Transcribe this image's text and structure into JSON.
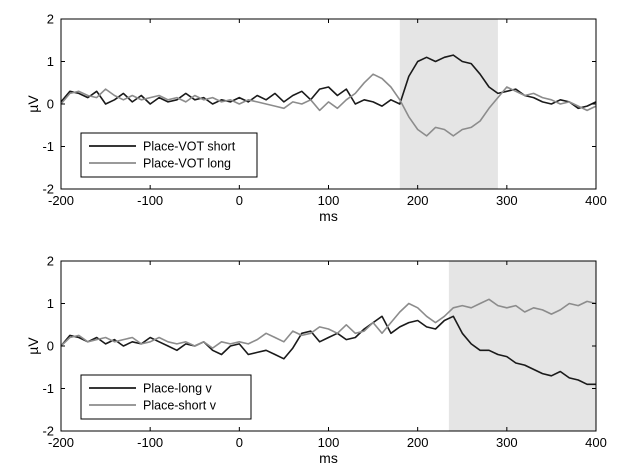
{
  "chart_data": [
    {
      "type": "line",
      "xlabel": "ms",
      "ylabel": "µV",
      "xlim": [
        -200,
        400
      ],
      "ylim": [
        -2,
        2
      ],
      "xticks": [
        "-200",
        "-100",
        "0",
        "100",
        "200",
        "300",
        "400"
      ],
      "yticks": [
        "-2",
        "-1",
        "0",
        "1",
        "2"
      ],
      "legend_position": "bottom-left",
      "shaded_region": [
        180,
        290
      ],
      "colors": {
        "shade": "#e5e5e5",
        "axis": "#000000"
      },
      "series": [
        {
          "name": "Place-VOT short",
          "color": "#1a1a1a",
          "x": [
            -200,
            -190,
            -180,
            -170,
            -160,
            -150,
            -140,
            -130,
            -120,
            -110,
            -100,
            -90,
            -80,
            -70,
            -60,
            -50,
            -40,
            -30,
            -20,
            -10,
            0,
            10,
            20,
            30,
            40,
            50,
            60,
            70,
            80,
            90,
            100,
            110,
            120,
            130,
            140,
            150,
            160,
            170,
            180,
            190,
            200,
            210,
            220,
            230,
            240,
            250,
            260,
            270,
            280,
            290,
            300,
            310,
            320,
            330,
            340,
            350,
            360,
            370,
            380,
            390,
            400
          ],
          "values": [
            0.05,
            0.3,
            0.25,
            0.15,
            0.3,
            0.0,
            0.1,
            0.25,
            0.05,
            0.2,
            0.0,
            0.15,
            0.05,
            0.1,
            0.25,
            0.1,
            0.15,
            0.0,
            0.1,
            0.05,
            0.15,
            0.05,
            0.2,
            0.1,
            0.25,
            0.05,
            0.2,
            0.3,
            0.1,
            0.35,
            0.4,
            0.2,
            0.35,
            0.0,
            0.1,
            0.05,
            -0.05,
            0.1,
            0.0,
            0.65,
            1.0,
            1.1,
            1.0,
            1.1,
            1.15,
            1.0,
            0.95,
            0.7,
            0.4,
            0.25,
            0.3,
            0.35,
            0.2,
            0.15,
            0.05,
            0.0,
            0.1,
            0.05,
            -0.1,
            -0.05,
            0.05
          ]
        },
        {
          "name": "Place-VOT long",
          "color": "#8c8c8c",
          "x": [
            -200,
            -190,
            -180,
            -170,
            -160,
            -150,
            -140,
            -130,
            -120,
            -110,
            -100,
            -90,
            -80,
            -70,
            -60,
            -50,
            -40,
            -30,
            -20,
            -10,
            0,
            10,
            20,
            30,
            40,
            50,
            60,
            70,
            80,
            90,
            100,
            110,
            120,
            130,
            140,
            150,
            160,
            170,
            180,
            190,
            200,
            210,
            220,
            230,
            240,
            250,
            260,
            270,
            280,
            290,
            300,
            310,
            320,
            330,
            340,
            350,
            360,
            370,
            380,
            390,
            400
          ],
          "values": [
            0.0,
            0.25,
            0.3,
            0.2,
            0.15,
            0.35,
            0.2,
            0.1,
            0.2,
            0.1,
            0.15,
            0.2,
            0.1,
            0.15,
            0.05,
            0.2,
            0.1,
            0.15,
            0.05,
            0.1,
            0.0,
            0.1,
            0.05,
            0.0,
            -0.05,
            -0.1,
            0.05,
            0.0,
            0.1,
            -0.15,
            0.05,
            -0.1,
            0.1,
            0.25,
            0.5,
            0.7,
            0.6,
            0.4,
            0.1,
            -0.3,
            -0.6,
            -0.75,
            -0.55,
            -0.6,
            -0.75,
            -0.6,
            -0.55,
            -0.4,
            -0.1,
            0.15,
            0.4,
            0.3,
            0.2,
            0.25,
            0.15,
            0.1,
            0.0,
            0.05,
            -0.05,
            -0.15,
            -0.05
          ]
        }
      ]
    },
    {
      "type": "line",
      "xlabel": "ms",
      "ylabel": "µV",
      "xlim": [
        -200,
        400
      ],
      "ylim": [
        -2,
        2
      ],
      "xticks": [
        "-200",
        "-100",
        "0",
        "100",
        "200",
        "300",
        "400"
      ],
      "yticks": [
        "-2",
        "-1",
        "0",
        "1",
        "2"
      ],
      "legend_position": "bottom-left",
      "shaded_region": [
        235,
        400
      ],
      "colors": {
        "shade": "#e5e5e5",
        "axis": "#000000"
      },
      "series": [
        {
          "name": "Place-long v",
          "color": "#1a1a1a",
          "x": [
            -200,
            -190,
            -180,
            -170,
            -160,
            -150,
            -140,
            -130,
            -120,
            -110,
            -100,
            -90,
            -80,
            -70,
            -60,
            -50,
            -40,
            -30,
            -20,
            -10,
            0,
            10,
            20,
            30,
            40,
            50,
            60,
            70,
            80,
            90,
            100,
            110,
            120,
            130,
            140,
            150,
            160,
            170,
            180,
            190,
            200,
            210,
            220,
            230,
            240,
            250,
            260,
            270,
            280,
            290,
            300,
            310,
            320,
            330,
            340,
            350,
            360,
            370,
            380,
            390,
            400
          ],
          "values": [
            0.0,
            0.25,
            0.2,
            0.1,
            0.2,
            0.05,
            0.15,
            0.0,
            0.1,
            0.05,
            0.2,
            0.1,
            0.0,
            -0.1,
            0.05,
            0.0,
            0.1,
            -0.1,
            -0.2,
            0.0,
            0.05,
            -0.2,
            -0.15,
            -0.1,
            -0.2,
            -0.3,
            -0.05,
            0.3,
            0.35,
            0.1,
            0.2,
            0.3,
            0.15,
            0.2,
            0.4,
            0.55,
            0.7,
            0.3,
            0.45,
            0.55,
            0.6,
            0.45,
            0.4,
            0.6,
            0.7,
            0.3,
            0.05,
            -0.1,
            -0.1,
            -0.2,
            -0.25,
            -0.4,
            -0.45,
            -0.55,
            -0.65,
            -0.7,
            -0.6,
            -0.75,
            -0.8,
            -0.9,
            -0.9
          ]
        },
        {
          "name": "Place-short v",
          "color": "#8c8c8c",
          "x": [
            -200,
            -190,
            -180,
            -170,
            -160,
            -150,
            -140,
            -130,
            -120,
            -110,
            -100,
            -90,
            -80,
            -70,
            -60,
            -50,
            -40,
            -30,
            -20,
            -10,
            0,
            10,
            20,
            30,
            40,
            50,
            60,
            70,
            80,
            90,
            100,
            110,
            120,
            130,
            140,
            150,
            160,
            170,
            180,
            190,
            200,
            210,
            220,
            230,
            240,
            250,
            260,
            270,
            280,
            290,
            300,
            310,
            320,
            330,
            340,
            350,
            360,
            370,
            380,
            390,
            400
          ],
          "values": [
            0.0,
            0.2,
            0.25,
            0.1,
            0.15,
            0.2,
            0.1,
            0.15,
            0.2,
            0.05,
            0.1,
            0.2,
            0.1,
            0.05,
            0.1,
            0.0,
            0.1,
            -0.05,
            0.1,
            0.05,
            0.1,
            0.05,
            0.15,
            0.3,
            0.2,
            0.1,
            0.35,
            0.25,
            0.3,
            0.45,
            0.4,
            0.3,
            0.5,
            0.3,
            0.35,
            0.55,
            0.3,
            0.55,
            0.8,
            1.0,
            0.9,
            0.7,
            0.55,
            0.7,
            0.9,
            0.95,
            0.9,
            1.0,
            1.1,
            0.95,
            0.9,
            0.95,
            0.8,
            0.9,
            0.85,
            0.75,
            0.85,
            1.0,
            0.95,
            1.05,
            1.0
          ]
        }
      ]
    }
  ]
}
